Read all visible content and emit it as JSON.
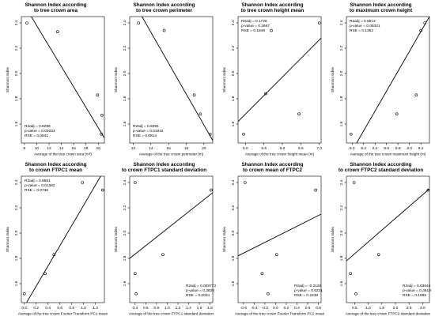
{
  "chart_data": [
    {
      "type": "scatter",
      "title_lines": [
        "Shannon Index according",
        "to tree crown area"
      ],
      "xlabel": "Average of the tree crown area (m²)",
      "ylabel": "Shannon Index",
      "xlim": [
        7.5,
        21.0
      ],
      "ylim": [
        1.45,
        2.45
      ],
      "xticks": [
        "8",
        "10",
        "12",
        "14",
        "16",
        "18",
        "20"
      ],
      "yticks": [
        "1.6",
        "1.8",
        "2.0",
        "2.2",
        "2.4"
      ],
      "points": [
        [
          8.4,
          2.4
        ],
        [
          13.4,
          2.33
        ],
        [
          19.9,
          1.83
        ],
        [
          20.6,
          1.67
        ],
        [
          20.5,
          1.52
        ]
      ],
      "fit_line": [
        [
          7.5,
          2.58
        ],
        [
          21.0,
          1.49
        ]
      ],
      "stats_pos": "bottom-left",
      "stats": [
        "R2adj = 0.8288",
        "p-value = 0.02033",
        "RSE = 0.0841"
      ]
    },
    {
      "type": "scatter",
      "title_lines": [
        "Shannon Index according",
        "to tree crown perimeter"
      ],
      "xlabel": "Average of the tree crown perimeter (m)",
      "ylabel": "Shannon Index",
      "xlim": [
        11.6,
        21.0
      ],
      "ylim": [
        1.45,
        2.45
      ],
      "xticks": [
        "12",
        "14",
        "16",
        "18",
        "20"
      ],
      "yticks": [
        "1.6",
        "1.8",
        "2.0",
        "2.2",
        "2.4"
      ],
      "points": [
        [
          12.6,
          2.4
        ],
        [
          15.5,
          2.34
        ],
        [
          18.9,
          1.83
        ],
        [
          19.6,
          1.68
        ],
        [
          20.7,
          1.52
        ]
      ],
      "fit_line": [
        [
          11.6,
          2.62
        ],
        [
          21.0,
          1.47
        ]
      ],
      "stats_pos": "bottom-left",
      "stats": [
        "R2adj = 0.8394",
        "p-value = 0.01842",
        "RSE = 0.0814"
      ]
    },
    {
      "type": "scatter",
      "title_lines": [
        "Shannon Index according",
        "to tree crown height mean"
      ],
      "xlabel": "Average of the tree crown height mean (m)",
      "ylabel": "Shannon Index",
      "xlim": [
        4.8,
        7.05
      ],
      "ylim": [
        1.45,
        2.45
      ],
      "xticks": [
        "5.0",
        "5.5",
        "6.0",
        "6.5",
        "7.0"
      ],
      "yticks": [
        "1.6",
        "1.8",
        "2.0",
        "2.2",
        "2.4"
      ],
      "points": [
        [
          4.95,
          1.52
        ],
        [
          5.55,
          1.84
        ],
        [
          5.7,
          2.34
        ],
        [
          6.45,
          1.68
        ],
        [
          7.0,
          2.4
        ]
      ],
      "fit_line": [
        [
          4.8,
          1.62
        ],
        [
          7.05,
          2.28
        ]
      ],
      "stats_pos": "top-left",
      "stats": [
        "R2adj = 0.1725",
        "p-value = 0.2687",
        "RSE = 0.1849"
      ]
    },
    {
      "type": "scatter",
      "title_lines": [
        "Shannon Index according",
        "to maximum crown height"
      ],
      "xlabel": "Average of the tree crown maximum height (m)",
      "ylabel": "Shannon Index",
      "xlim": [
        7.9,
        9.35
      ],
      "ylim": [
        1.45,
        2.45
      ],
      "xticks": [
        "8.0",
        "8.2",
        "8.4",
        "8.6",
        "8.8",
        "9.0",
        "9.2"
      ],
      "yticks": [
        "1.6",
        "1.8",
        "2.0",
        "2.2",
        "2.4"
      ],
      "points": [
        [
          7.98,
          1.52
        ],
        [
          8.78,
          1.68
        ],
        [
          9.12,
          1.83
        ],
        [
          9.2,
          2.34
        ],
        [
          9.27,
          2.4
        ]
      ],
      "fit_line": [
        [
          7.9,
          1.31
        ],
        [
          9.35,
          2.45
        ]
      ],
      "stats_pos": "top-left",
      "stats": [
        "R2adj = 0.5512",
        "p-value = 0.09321",
        "RSE = 0.1362"
      ]
    },
    {
      "type": "scatter",
      "title_lines": [
        "Shannon Index according",
        "to crown FTPC1 mean"
      ],
      "xlabel": "Average of the tree crown Fourier Transform PC1 mean",
      "ylabel": "Shannon Index",
      "xlim": [
        -0.05,
        1.35
      ],
      "ylim": [
        1.45,
        2.45
      ],
      "xticks": [
        "0.0",
        "0.2",
        "0.4",
        "0.6",
        "0.8",
        "1.0",
        "1.2"
      ],
      "yticks": [
        "1.6",
        "1.8",
        "2.0",
        "2.2",
        "2.4"
      ],
      "points": [
        [
          0.0,
          1.52
        ],
        [
          0.35,
          1.68
        ],
        [
          0.5,
          1.83
        ],
        [
          0.98,
          2.4
        ],
        [
          1.32,
          2.34
        ]
      ],
      "fit_line": [
        [
          -0.05,
          1.38
        ],
        [
          1.35,
          2.5
        ]
      ],
      "stats_pos": "top-left",
      "stats": [
        "R2adj = 0.8881",
        "p-value = 0.01362",
        "RSE = 0.0736"
      ]
    },
    {
      "type": "scatter",
      "title_lines": [
        "Shannon Index according",
        "to crown FTPC1 standard deviation"
      ],
      "xlabel": "Average of the tree crown FTPC1 standard deviation",
      "ylabel": "Shannon Index",
      "xlim": [
        0.3,
        1.85
      ],
      "ylim": [
        1.45,
        2.45
      ],
      "xticks": [
        "0.4",
        "0.6",
        "0.8",
        "1.0",
        "1.2",
        "1.4",
        "1.6",
        "1.8"
      ],
      "yticks": [
        "1.6",
        "1.8",
        "2.0",
        "2.2",
        "2.4"
      ],
      "points": [
        [
          0.4,
          2.4
        ],
        [
          0.4,
          1.68
        ],
        [
          0.42,
          1.52
        ],
        [
          0.92,
          1.83
        ],
        [
          1.82,
          2.34
        ]
      ],
      "fit_line": [
        [
          0.3,
          1.8
        ],
        [
          1.85,
          2.32
        ]
      ],
      "stats_pos": "bottom-right",
      "stats": [
        "R2adj = 0.008773",
        "p-value = 0.3838",
        "RSE = 0.2024"
      ]
    },
    {
      "type": "scatter",
      "title_lines": [
        "Shannon Index according",
        "to crown mean of FTPC2"
      ],
      "xlabel": "Average of the tree crown Fourier Transform PC2 mean",
      "ylabel": "Shannon Index",
      "xlim": [
        -0.7,
        0.85
      ],
      "ylim": [
        1.45,
        2.45
      ],
      "xticks": [
        "-0.6",
        "-0.4",
        "-0.2",
        "0.0",
        "0.2",
        "0.4",
        "0.6",
        "0.8"
      ],
      "yticks": [
        "1.6",
        "1.8",
        "2.0",
        "2.2",
        "2.4"
      ],
      "points": [
        [
          -0.57,
          2.4
        ],
        [
          -0.25,
          1.68
        ],
        [
          -0.14,
          1.52
        ],
        [
          0.02,
          1.83
        ],
        [
          0.75,
          2.34
        ]
      ],
      "fit_line": [
        [
          -0.7,
          1.82
        ],
        [
          0.85,
          2.15
        ]
      ],
      "stats_pos": "bottom-right",
      "stats": [
        "R2adj = -0.2128",
        "p-value = 0.6231",
        "RSE = 0.2238"
      ]
    },
    {
      "type": "scatter",
      "title_lines": [
        "Shannon Index according",
        "to crown FTPC2 standard deviation"
      ],
      "xlabel": "Average of the tree crown FTPC2 standard deviation",
      "ylabel": "Shannon Index",
      "xlim": [
        0.2,
        3.25
      ],
      "ylim": [
        1.45,
        2.45
      ],
      "xticks": [
        "0.5",
        "1.0",
        "1.5",
        "2.0",
        "2.5",
        "3.0"
      ],
      "yticks": [
        "1.6",
        "1.8",
        "2.0",
        "2.2",
        "2.4"
      ],
      "points": [
        [
          0.35,
          1.68
        ],
        [
          0.48,
          2.4
        ],
        [
          0.55,
          1.52
        ],
        [
          1.38,
          1.83
        ],
        [
          3.2,
          2.34
        ]
      ],
      "fit_line": [
        [
          0.2,
          1.78
        ],
        [
          3.25,
          2.35
        ]
      ],
      "stats_pos": "bottom-right",
      "stats": [
        "R2adj = 0.03644",
        "p-value = 0.3619",
        "RSE = 0.1995"
      ]
    }
  ]
}
